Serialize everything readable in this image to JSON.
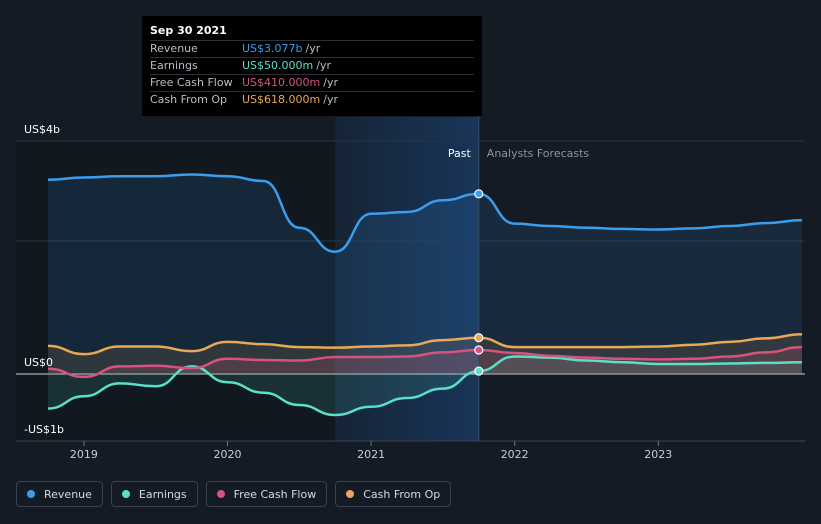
{
  "tooltip": {
    "date": "Sep 30 2021",
    "rows": [
      {
        "label": "Revenue",
        "value": "US$3.077b",
        "unit": "/yr",
        "color": "#3a9ded"
      },
      {
        "label": "Earnings",
        "value": "US$50.000m",
        "unit": "/yr",
        "color": "#58e0c8"
      },
      {
        "label": "Free Cash Flow",
        "value": "US$410.000m",
        "unit": "/yr",
        "color": "#d6527f"
      },
      {
        "label": "Cash From Op",
        "value": "US$618.000m",
        "unit": "/yr",
        "color": "#e8a856"
      }
    ]
  },
  "legend": [
    {
      "label": "Revenue",
      "color": "#3a9ded"
    },
    {
      "label": "Earnings",
      "color": "#58e0c8"
    },
    {
      "label": "Free Cash Flow",
      "color": "#d6527f"
    },
    {
      "label": "Cash From Op",
      "color": "#e8a856"
    }
  ],
  "chart_data": {
    "type": "line",
    "yticks": [
      "US$4b",
      "US$0",
      "-US$1b"
    ],
    "ylim": [
      -1,
      3.5
    ],
    "xticks": [
      {
        "label": "2019",
        "value": 2019.0
      },
      {
        "label": "2020",
        "value": 2020.0
      },
      {
        "label": "2021",
        "value": 2021.0
      },
      {
        "label": "2022",
        "value": 2022.0
      },
      {
        "label": "2023",
        "value": 2023.0
      }
    ],
    "divider_label_past": "Past",
    "divider_label_future": "Analysts Forecasts",
    "past_end": 2021.75,
    "highlight_start": 2020.75,
    "series": [
      {
        "name": "Revenue",
        "color": "#3a9ded",
        "x": [
          2018.75,
          2019.0,
          2019.25,
          2019.5,
          2019.75,
          2020.0,
          2020.25,
          2020.5,
          2020.75,
          2021.0,
          2021.25,
          2021.5,
          2021.75,
          2022.0,
          2022.25,
          2022.5,
          2022.75,
          2023.0,
          2023.25,
          2023.5,
          2023.75,
          2024.0
        ],
        "values": [
          3.32,
          3.36,
          3.38,
          3.38,
          3.41,
          3.38,
          3.3,
          2.5,
          2.09,
          2.74,
          2.77,
          2.97,
          3.08,
          2.57,
          2.53,
          2.5,
          2.48,
          2.47,
          2.49,
          2.53,
          2.58,
          2.63
        ]
      },
      {
        "name": "Earnings",
        "color": "#58e0c8",
        "x": [
          2018.75,
          2019.0,
          2019.25,
          2019.5,
          2019.75,
          2020.0,
          2020.25,
          2020.5,
          2020.75,
          2021.0,
          2021.25,
          2021.5,
          2021.75,
          2022.0,
          2022.25,
          2022.5,
          2022.75,
          2023.0,
          2023.25,
          2023.5,
          2023.75,
          2024.0
        ],
        "values": [
          -0.59,
          -0.38,
          -0.16,
          -0.21,
          0.13,
          -0.14,
          -0.32,
          -0.53,
          -0.7,
          -0.56,
          -0.41,
          -0.25,
          0.05,
          0.3,
          0.28,
          0.23,
          0.2,
          0.17,
          0.17,
          0.18,
          0.19,
          0.2
        ]
      },
      {
        "name": "Free Cash Flow",
        "color": "#d6527f",
        "x": [
          2018.75,
          2019.0,
          2019.25,
          2019.5,
          2019.75,
          2020.0,
          2020.25,
          2020.5,
          2020.75,
          2021.0,
          2021.25,
          2021.5,
          2021.75,
          2022.0,
          2022.25,
          2022.5,
          2022.75,
          2023.0,
          2023.25,
          2023.5,
          2023.75,
          2024.0
        ],
        "values": [
          0.09,
          -0.05,
          0.13,
          0.14,
          0.1,
          0.26,
          0.24,
          0.23,
          0.29,
          0.29,
          0.3,
          0.37,
          0.41,
          0.36,
          0.31,
          0.28,
          0.26,
          0.25,
          0.26,
          0.3,
          0.37,
          0.46
        ]
      },
      {
        "name": "Cash From Op",
        "color": "#e8a856",
        "x": [
          2018.75,
          2019.0,
          2019.25,
          2019.5,
          2019.75,
          2020.0,
          2020.25,
          2020.5,
          2020.75,
          2021.0,
          2021.25,
          2021.5,
          2021.75,
          2022.0,
          2022.25,
          2022.5,
          2022.75,
          2023.0,
          2023.25,
          2023.5,
          2023.75,
          2024.0
        ],
        "values": [
          0.48,
          0.34,
          0.47,
          0.47,
          0.39,
          0.55,
          0.51,
          0.46,
          0.45,
          0.47,
          0.49,
          0.58,
          0.62,
          0.46,
          0.46,
          0.46,
          0.46,
          0.47,
          0.5,
          0.55,
          0.61,
          0.68
        ]
      }
    ],
    "highlight_points": [
      {
        "series": "Revenue",
        "x": 2021.75,
        "value": 3.08
      },
      {
        "series": "Cash From Op",
        "x": 2021.75,
        "value": 0.62
      },
      {
        "series": "Free Cash Flow",
        "x": 2021.75,
        "value": 0.41
      },
      {
        "series": "Earnings",
        "x": 2021.75,
        "value": 0.05
      }
    ]
  }
}
